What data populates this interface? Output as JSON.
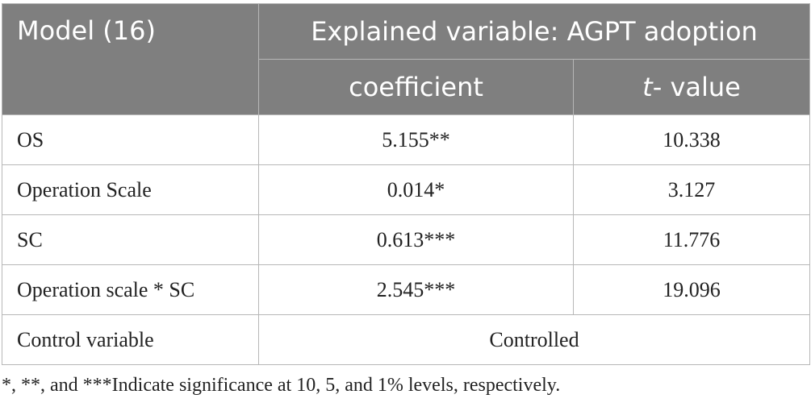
{
  "header": {
    "model_label": "Model (16)",
    "explained_variable": "Explained variable: AGPT adoption",
    "col_coefficient": "coefficient",
    "col_t_italic": "t",
    "col_t_rest": "- value"
  },
  "rows": [
    {
      "label": "OS",
      "coefficient": "5.155**",
      "t_value": "10.338"
    },
    {
      "label": "Operation Scale",
      "coefficient": "0.014*",
      "t_value": "3.127"
    },
    {
      "label": "SC",
      "coefficient": "0.613***",
      "t_value": "11.776"
    },
    {
      "label": "Operation scale * SC",
      "coefficient": "2.545***",
      "t_value": "19.096"
    }
  ],
  "control_row": {
    "label": "Control variable",
    "value": "Controlled"
  },
  "footnote": "*, **, and ***Indicate significance at 10, 5, and 1% levels, respectively."
}
